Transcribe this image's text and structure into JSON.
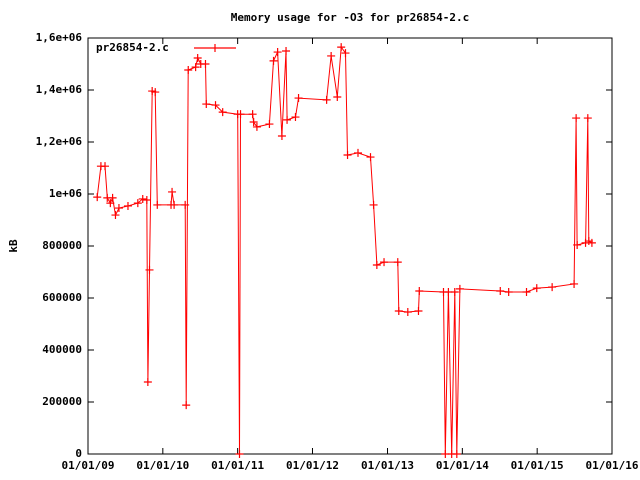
{
  "chart_data": {
    "type": "line",
    "title": "Memory usage for -O3 for pr26854-2.c",
    "y_label": "kB",
    "legend": "top-left",
    "grid": false,
    "xlim": [
      "2009-01-01",
      "2016-01-01"
    ],
    "xticks": [
      {
        "value": "2009-01-01",
        "label": "01/01/09"
      },
      {
        "value": "2010-01-01",
        "label": "01/01/10"
      },
      {
        "value": "2011-01-01",
        "label": "01/01/11"
      },
      {
        "value": "2012-01-01",
        "label": "01/01/12"
      },
      {
        "value": "2013-01-01",
        "label": "01/01/13"
      },
      {
        "value": "2014-01-01",
        "label": "01/01/14"
      },
      {
        "value": "2015-01-01",
        "label": "01/01/15"
      },
      {
        "value": "2016-01-01",
        "label": "01/01/16"
      }
    ],
    "ylim": [
      0,
      1600000
    ],
    "yticks": [
      0,
      200000,
      400000,
      600000,
      800000,
      {
        "value": 1000000,
        "label": "1e+06"
      },
      {
        "value": 1200000,
        "label": "1,2e+06"
      },
      {
        "value": 1400000,
        "label": "1,4e+06"
      },
      {
        "value": 1600000,
        "label": "1,6e+06"
      }
    ],
    "x": [
      "2009-02-15",
      "2009-03-05",
      "2009-03-25",
      "2009-04-05",
      "2009-04-20",
      "2009-05-01",
      "2009-05-15",
      "2009-06-01",
      "2009-07-15",
      "2009-09-01",
      "2009-09-25",
      "2009-10-15",
      "2009-10-20",
      "2009-10-28",
      "2009-11-10",
      "2009-11-25",
      "2009-12-05",
      "2010-02-10",
      "2010-02-15",
      "2010-02-25",
      "2010-04-20",
      "2010-04-25",
      "2010-05-05",
      "2010-06-10",
      "2010-06-20",
      "2010-07-05",
      "2010-07-28",
      "2010-08-01",
      "2010-09-15",
      "2010-10-20",
      "2011-01-01",
      "2011-01-10",
      "2011-01-15",
      "2011-03-15",
      "2011-03-20",
      "2011-04-05",
      "2011-06-05",
      "2011-06-25",
      "2011-07-15",
      "2011-08-05",
      "2011-08-25",
      "2011-08-30",
      "2011-10-10",
      "2011-10-25",
      "2012-03-10",
      "2012-04-01",
      "2012-05-01",
      "2012-05-20",
      "2012-06-10",
      "2012-06-20",
      "2012-08-10",
      "2012-10-10",
      "2012-10-25",
      "2012-11-10",
      "2012-12-15",
      "2013-02-20",
      "2013-02-25",
      "2013-04-10",
      "2013-06-01",
      "2013-06-05",
      "2013-10-01",
      "2013-10-10",
      "2013-10-25",
      "2013-11-10",
      "2013-11-25",
      "2013-12-05",
      "2013-12-20",
      "2014-07-05",
      "2014-08-15",
      "2014-11-10",
      "2014-12-30",
      "2015-03-15",
      "2015-06-30",
      "2015-07-10",
      "2015-07-15",
      "2015-08-25",
      "2015-09-05",
      "2015-09-10",
      "2015-09-25"
    ],
    "series": [
      {
        "name": "pr26854-2.c",
        "color": "#ff0000",
        "values": [
          988000,
          1107000,
          1107000,
          985000,
          965000,
          985000,
          919000,
          946000,
          954000,
          965000,
          981000,
          977000,
          277000,
          708000,
          1396000,
          1392000,
          958000,
          958000,
          1008000,
          958000,
          958000,
          188000,
          1477000,
          1488000,
          1523000,
          1500000,
          1500000,
          1346000,
          1342000,
          1315000,
          1307000,
          0,
          1307000,
          1307000,
          1277000,
          1258000,
          1269000,
          1512000,
          1546000,
          1223000,
          1550000,
          1285000,
          1296000,
          1369000,
          1362000,
          1531000,
          1373000,
          1565000,
          1542000,
          1150000,
          1158000,
          1142000,
          958000,
          727000,
          738000,
          738000,
          550000,
          546000,
          550000,
          627000,
          623000,
          0,
          623000,
          0,
          623000,
          0,
          635000,
          627000,
          623000,
          623000,
          638000,
          642000,
          654000,
          1292000,
          804000,
          812000,
          1292000,
          819000,
          812000
        ]
      }
    ]
  }
}
